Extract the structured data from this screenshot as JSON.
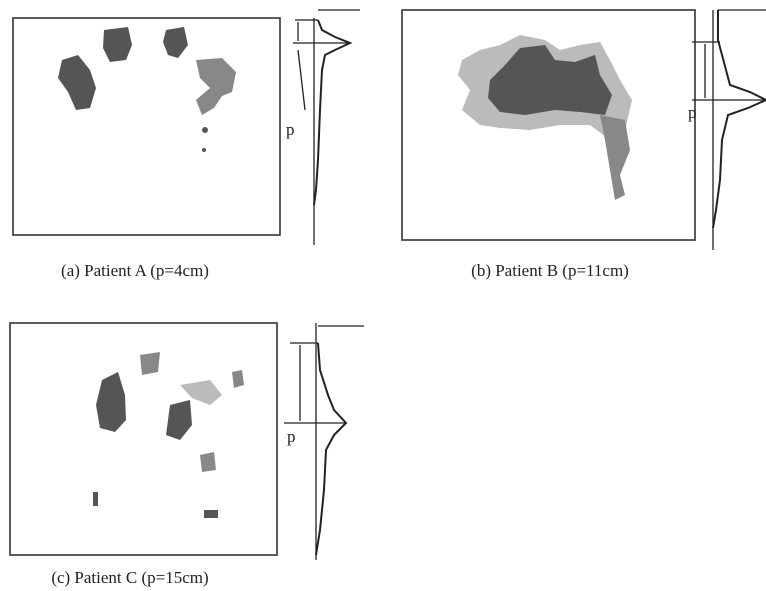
{
  "panels": [
    {
      "caption": "(a) Patient A (p=4cm)",
      "marker": "p"
    },
    {
      "caption": "(b) Patient B (p=11cm)",
      "marker": "p"
    },
    {
      "caption": "(c) Patient C (p=15cm)",
      "marker": "p"
    }
  ]
}
